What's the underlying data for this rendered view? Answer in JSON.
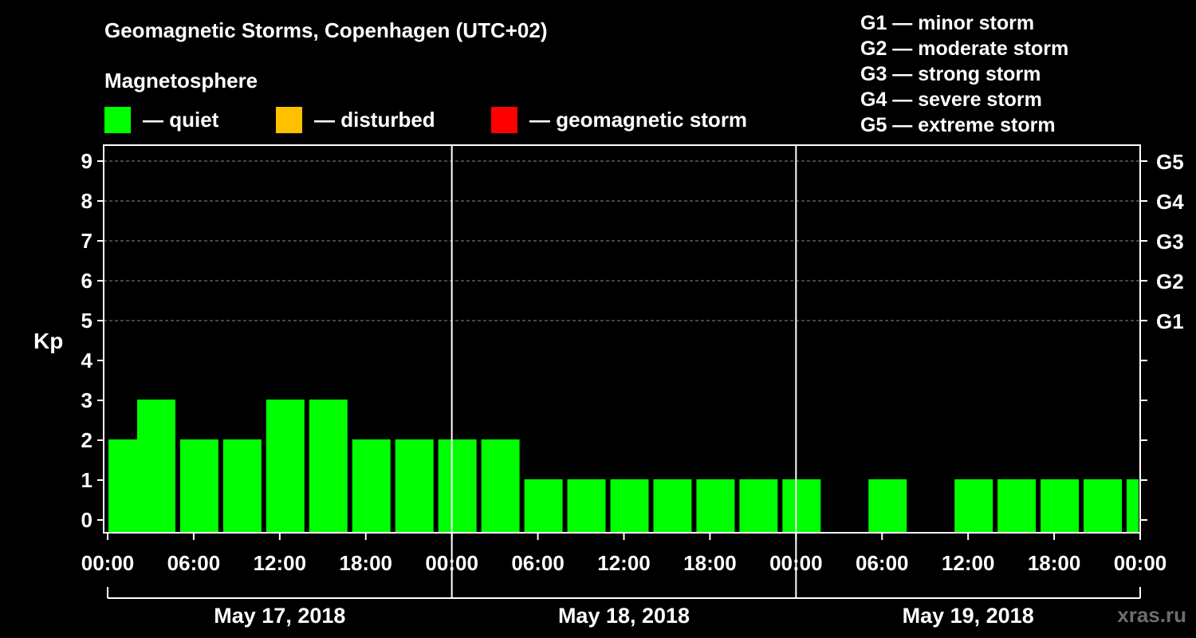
{
  "title": "Geomagnetic Storms, Copenhagen (UTC+02)",
  "magnetosphere": {
    "title": "Magnetosphere",
    "items": [
      {
        "label": "— quiet",
        "color": "#00ff00"
      },
      {
        "label": "— disturbed",
        "color": "#ffc000"
      },
      {
        "label": "— geomagnetic storm",
        "color": "#ff0000"
      }
    ]
  },
  "storm_scale": [
    "G1 — minor storm",
    "G2 — moderate storm",
    "G3 — strong storm",
    "G4 — severe storm",
    "G5 — extreme storm"
  ],
  "watermark": "xras.ru",
  "chart_data": {
    "type": "bar",
    "title": "Geomagnetic Storms, Copenhagen (UTC+02)",
    "ylabel": "Kp",
    "xlabel": "",
    "ylim": [
      0,
      9
    ],
    "yticks": [
      "0",
      "1",
      "2",
      "3",
      "4",
      "5",
      "6",
      "7",
      "8",
      "9"
    ],
    "right_axis": [
      {
        "kp": 5,
        "label": "G1"
      },
      {
        "kp": 6,
        "label": "G2"
      },
      {
        "kp": 7,
        "label": "G3"
      },
      {
        "kp": 8,
        "label": "G4"
      },
      {
        "kp": 9,
        "label": "G5"
      }
    ],
    "x_range_hours": [
      0,
      72
    ],
    "xtick_hours": [
      0,
      6,
      12,
      18,
      24,
      30,
      36,
      42,
      48,
      54,
      60,
      66,
      72
    ],
    "xtick_labels": [
      "00:00",
      "06:00",
      "12:00",
      "18:00",
      "00:00",
      "06:00",
      "12:00",
      "18:00",
      "00:00",
      "06:00",
      "12:00",
      "18:00",
      "00:00"
    ],
    "day_labels": [
      "May 17, 2018",
      "May 18, 2018",
      "May 19, 2018"
    ],
    "bars": [
      {
        "start_hour": 0,
        "kp": 2
      },
      {
        "start_hour": 2,
        "kp": 3
      },
      {
        "start_hour": 5,
        "kp": 2
      },
      {
        "start_hour": 8,
        "kp": 2
      },
      {
        "start_hour": 11,
        "kp": 3
      },
      {
        "start_hour": 14,
        "kp": 3
      },
      {
        "start_hour": 17,
        "kp": 2
      },
      {
        "start_hour": 20,
        "kp": 2
      },
      {
        "start_hour": 23,
        "kp": 2
      },
      {
        "start_hour": 26,
        "kp": 2
      },
      {
        "start_hour": 29,
        "kp": 1
      },
      {
        "start_hour": 32,
        "kp": 1
      },
      {
        "start_hour": 35,
        "kp": 1
      },
      {
        "start_hour": 38,
        "kp": 1
      },
      {
        "start_hour": 41,
        "kp": 1
      },
      {
        "start_hour": 44,
        "kp": 1
      },
      {
        "start_hour": 47,
        "kp": 1
      },
      {
        "start_hour": 50,
        "kp": 0
      },
      {
        "start_hour": 53,
        "kp": 1
      },
      {
        "start_hour": 56,
        "kp": 0
      },
      {
        "start_hour": 59,
        "kp": 1
      },
      {
        "start_hour": 62,
        "kp": 1
      },
      {
        "start_hour": 65,
        "kp": 1
      },
      {
        "start_hour": 68,
        "kp": 1
      },
      {
        "start_hour": 71,
        "kp": 1
      }
    ],
    "bar_color": "#00ff00"
  }
}
